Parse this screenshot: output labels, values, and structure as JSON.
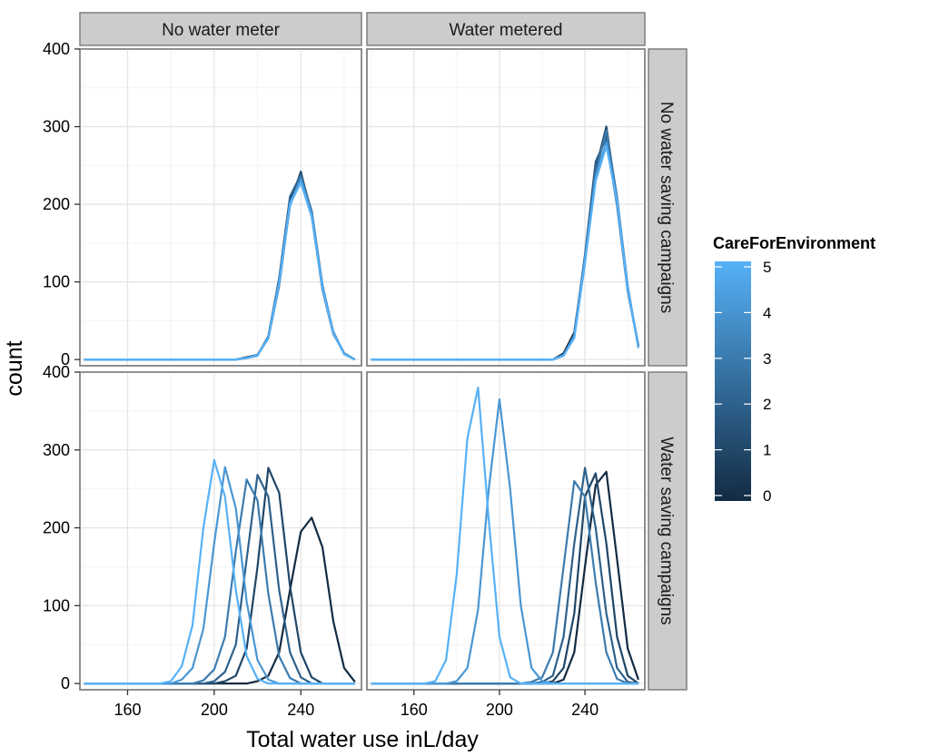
{
  "chart_data": {
    "type": "line",
    "xlabel": "Total water use inL/day",
    "ylabel": "count",
    "xlim": [
      138,
      268
    ],
    "ylim": [
      -8,
      400
    ],
    "x_ticks": [
      160,
      200,
      240
    ],
    "y_ticks": [
      0,
      100,
      200,
      300,
      400
    ],
    "grid": true,
    "legend": {
      "title": "CareForEnvironment",
      "placement": "right",
      "type": "colorbar",
      "min": 0,
      "max": 5,
      "ticks": [
        0,
        1,
        2,
        3,
        4,
        5
      ],
      "color_low": "#132B43",
      "color_high": "#56B1F7"
    },
    "col_facets": [
      "No water meter",
      "Water metered"
    ],
    "row_facets": [
      "No water saving campaigns",
      "Water saving campaigns"
    ],
    "x": [
      140,
      145,
      150,
      155,
      160,
      165,
      170,
      175,
      180,
      185,
      190,
      195,
      200,
      205,
      210,
      215,
      220,
      225,
      230,
      235,
      240,
      245,
      250,
      255,
      260,
      265
    ],
    "panels": [
      {
        "row": "No water saving campaigns",
        "col": "No water meter",
        "series": [
          {
            "care": 0,
            "values": [
              0,
              0,
              0,
              0,
              0,
              0,
              0,
              0,
              0,
              0,
              0,
              0,
              0,
              0,
              0,
              2,
              5,
              30,
              100,
              205,
              240,
              190,
              95,
              35,
              8,
              0
            ]
          },
          {
            "care": 1,
            "values": [
              0,
              0,
              0,
              0,
              0,
              0,
              0,
              0,
              0,
              0,
              0,
              0,
              0,
              0,
              0,
              3,
              6,
              28,
              95,
              200,
              242,
              185,
              90,
              33,
              8,
              0
            ]
          },
          {
            "care": 2,
            "values": [
              0,
              0,
              0,
              0,
              0,
              0,
              0,
              0,
              0,
              0,
              0,
              0,
              0,
              0,
              0,
              2,
              5,
              30,
              105,
              210,
              238,
              188,
              92,
              36,
              7,
              0
            ]
          },
          {
            "care": 3,
            "values": [
              0,
              0,
              0,
              0,
              0,
              0,
              0,
              0,
              0,
              0,
              0,
              0,
              0,
              0,
              0,
              2,
              6,
              27,
              98,
              198,
              236,
              192,
              96,
              34,
              8,
              0
            ]
          },
          {
            "care": 4,
            "values": [
              0,
              0,
              0,
              0,
              0,
              0,
              0,
              0,
              0,
              0,
              0,
              0,
              0,
              0,
              0,
              2,
              5,
              29,
              100,
              202,
              232,
              186,
              94,
              35,
              7,
              0
            ]
          },
          {
            "care": 5,
            "values": [
              0,
              0,
              0,
              0,
              0,
              0,
              0,
              0,
              0,
              0,
              0,
              0,
              0,
              0,
              0,
              2,
              5,
              28,
              97,
              200,
              228,
              184,
              92,
              34,
              7,
              0
            ]
          }
        ]
      },
      {
        "row": "No water saving campaigns",
        "col": "Water metered",
        "series": [
          {
            "care": 0,
            "values": [
              0,
              0,
              0,
              0,
              0,
              0,
              0,
              0,
              0,
              0,
              0,
              0,
              0,
              0,
              0,
              0,
              0,
              0,
              8,
              35,
              130,
              250,
              290,
              200,
              90,
              18
            ]
          },
          {
            "care": 1,
            "values": [
              0,
              0,
              0,
              0,
              0,
              0,
              0,
              0,
              0,
              0,
              0,
              0,
              0,
              0,
              0,
              0,
              0,
              0,
              6,
              30,
              125,
              245,
              300,
              205,
              92,
              16
            ]
          },
          {
            "care": 2,
            "values": [
              0,
              0,
              0,
              0,
              0,
              0,
              0,
              0,
              0,
              0,
              0,
              0,
              0,
              0,
              0,
              0,
              0,
              0,
              5,
              32,
              135,
              255,
              285,
              198,
              88,
              17
            ]
          },
          {
            "care": 3,
            "values": [
              0,
              0,
              0,
              0,
              0,
              0,
              0,
              0,
              0,
              0,
              0,
              0,
              0,
              0,
              0,
              0,
              0,
              0,
              6,
              28,
              128,
              240,
              295,
              210,
              95,
              15
            ]
          },
          {
            "care": 4,
            "values": [
              0,
              0,
              0,
              0,
              0,
              0,
              0,
              0,
              0,
              0,
              0,
              0,
              0,
              0,
              0,
              0,
              0,
              0,
              5,
              30,
              130,
              235,
              280,
              200,
              90,
              16
            ]
          },
          {
            "care": 5,
            "values": [
              0,
              0,
              0,
              0,
              0,
              0,
              0,
              0,
              0,
              0,
              0,
              0,
              0,
              0,
              0,
              0,
              0,
              0,
              5,
              28,
              125,
              230,
              275,
              205,
              92,
              15
            ]
          }
        ]
      },
      {
        "row": "Water saving campaigns",
        "col": "No water meter",
        "series": [
          {
            "care": 0,
            "values": [
              0,
              0,
              0,
              0,
              0,
              0,
              0,
              0,
              0,
              0,
              0,
              0,
              0,
              0,
              0,
              0,
              3,
              10,
              40,
              120,
              195,
              213,
              175,
              80,
              20,
              2
            ]
          },
          {
            "care": 1,
            "values": [
              0,
              0,
              0,
              0,
              0,
              0,
              0,
              0,
              0,
              0,
              0,
              0,
              0,
              3,
              10,
              45,
              150,
              277,
              245,
              125,
              40,
              8,
              0,
              0,
              0,
              0
            ]
          },
          {
            "care": 2,
            "values": [
              0,
              0,
              0,
              0,
              0,
              0,
              0,
              0,
              0,
              0,
              0,
              0,
              3,
              15,
              50,
              160,
              268,
              240,
              120,
              40,
              8,
              0,
              0,
              0,
              0,
              0
            ]
          },
          {
            "care": 3,
            "values": [
              0,
              0,
              0,
              0,
              0,
              0,
              0,
              0,
              0,
              0,
              0,
              4,
              18,
              60,
              170,
              262,
              235,
              115,
              35,
              7,
              0,
              0,
              0,
              0,
              0,
              0
            ]
          },
          {
            "care": 4,
            "values": [
              0,
              0,
              0,
              0,
              0,
              0,
              0,
              0,
              0,
              5,
              20,
              70,
              180,
              278,
              225,
              105,
              30,
              5,
              0,
              0,
              0,
              0,
              0,
              0,
              0,
              0
            ]
          },
          {
            "care": 5,
            "values": [
              0,
              0,
              0,
              0,
              0,
              0,
              0,
              0,
              3,
              22,
              75,
              200,
              287,
              240,
              120,
              35,
              6,
              0,
              0,
              0,
              0,
              0,
              0,
              0,
              0,
              0
            ]
          }
        ]
      },
      {
        "row": "Water saving campaigns",
        "col": "Water metered",
        "series": [
          {
            "care": 0,
            "values": [
              0,
              0,
              0,
              0,
              0,
              0,
              0,
              0,
              0,
              0,
              0,
              0,
              0,
              0,
              0,
              0,
              0,
              0,
              5,
              40,
              150,
              255,
              272,
              160,
              45,
              5
            ]
          },
          {
            "care": 1,
            "values": [
              0,
              0,
              0,
              0,
              0,
              0,
              0,
              0,
              0,
              0,
              0,
              0,
              0,
              0,
              0,
              0,
              0,
              3,
              20,
              90,
              240,
              270,
              180,
              60,
              10,
              0
            ]
          },
          {
            "care": 2,
            "values": [
              0,
              0,
              0,
              0,
              0,
              0,
              0,
              0,
              0,
              0,
              0,
              0,
              0,
              0,
              0,
              0,
              2,
              10,
              60,
              180,
              277,
              200,
              90,
              20,
              2,
              0
            ]
          },
          {
            "care": 3,
            "values": [
              0,
              0,
              0,
              0,
              0,
              0,
              0,
              0,
              0,
              0,
              0,
              0,
              0,
              0,
              0,
              2,
              8,
              40,
              150,
              260,
              240,
              130,
              40,
              6,
              0,
              0
            ]
          },
          {
            "care": 4,
            "values": [
              0,
              0,
              0,
              0,
              0,
              0,
              0,
              0,
              3,
              20,
              95,
              250,
              365,
              250,
              100,
              20,
              3,
              0,
              0,
              0,
              0,
              0,
              0,
              0,
              0,
              0
            ]
          },
          {
            "care": 5,
            "values": [
              0,
              0,
              0,
              0,
              0,
              0,
              3,
              30,
              140,
              315,
              380,
              210,
              60,
              8,
              0,
              0,
              0,
              0,
              0,
              0,
              0,
              0,
              0,
              0,
              0,
              0
            ]
          }
        ]
      }
    ]
  }
}
